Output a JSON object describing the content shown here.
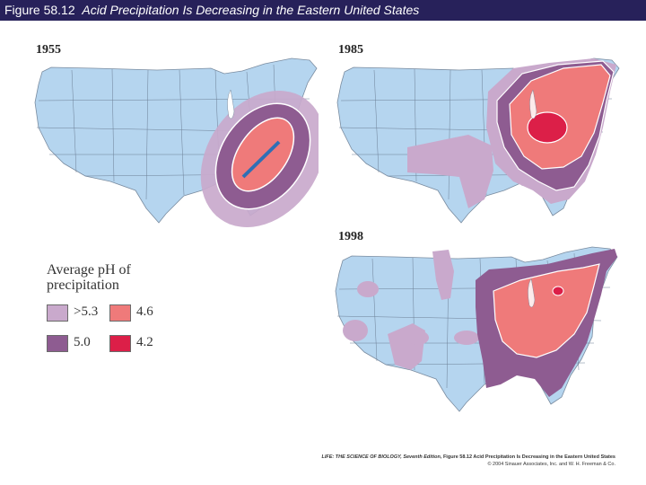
{
  "header": {
    "figure_label": "Figure 58.12",
    "figure_title": "Acid Precipitation Is Decreasing in the Eastern United States"
  },
  "maps": [
    {
      "year": "1955"
    },
    {
      "year": "1985"
    },
    {
      "year": "1998"
    }
  ],
  "legend": {
    "title_line1": "Average pH of",
    "title_line2": "precipitation",
    "items": [
      {
        "label": ">5.3",
        "color": "#c9a9cc"
      },
      {
        "label": "4.6",
        "color": "#ef7a7a"
      },
      {
        "label": "5.0",
        "color": "#8e5c91"
      },
      {
        "label": "4.2",
        "color": "#dc1f48"
      }
    ]
  },
  "colors": {
    "land": "#b5d5ef",
    "ocean": "#ffffff",
    "header_bg": "#27215a"
  },
  "credit": {
    "line1_book": "LIFE: THE SCIENCE OF BIOLOGY, Seventh Edition",
    "line1_rest": ", Figure 58.12 Acid Precipitation Is Decreasing in the Eastern United States",
    "line2": "© 2004 Sinauer Associates, Inc. and W. H. Freeman & Co."
  }
}
